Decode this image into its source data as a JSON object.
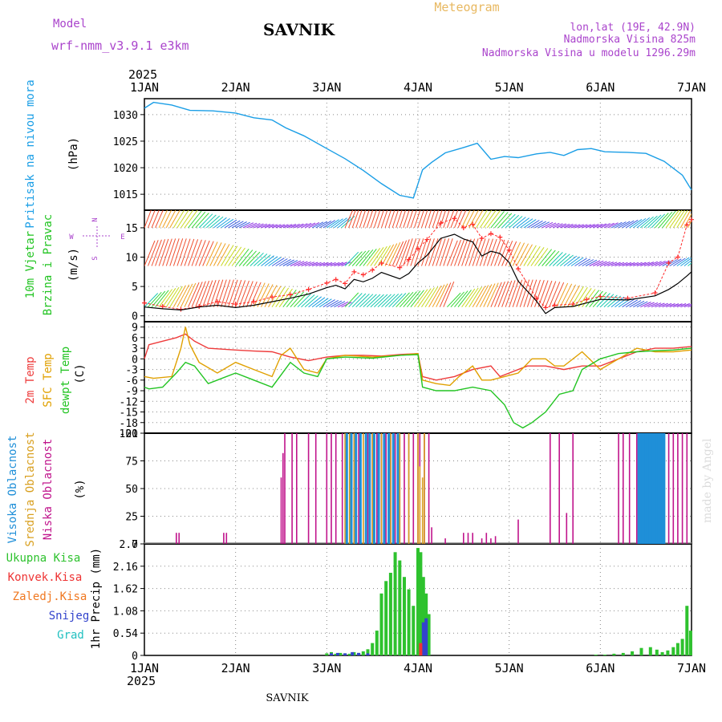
{
  "header": {
    "model_label": "Model",
    "model_name": "wrf-nmm_v3.9.1 e3km",
    "station": "SAVNIK",
    "product": "Meteogram",
    "lonlat": "lon,lat (19E, 42.9N)",
    "elevation": "Nadmorska Visina 825m",
    "model_elevation": "Nadmorska Visina u modelu 1296.29m",
    "footer_station": "SAVNIK",
    "signature": "made by Angel",
    "year": "2025"
  },
  "colors": {
    "pressure": "#1a9ee6",
    "wind_speed": "#000000",
    "gust": "#ff2a2a",
    "temp2m": "#ee3b3b",
    "sfc_temp": "#e0a000",
    "dewpt": "#22c422",
    "high_cloud": "#1f8fd8",
    "mid_cloud": "#d9a020",
    "low_cloud": "#c0148c",
    "precip_total": "#2ec22e",
    "precip_conv": "#ee3333",
    "snow": "#3344cc",
    "header_purple": "#aa44cc",
    "product_color": "#e8b860"
  },
  "chart_data": {
    "type": "line",
    "x_ticks": [
      "1JAN",
      "2JAN",
      "3JAN",
      "4JAN",
      "5JAN",
      "6JAN",
      "7JAN"
    ],
    "x_range_days": [
      0,
      6
    ],
    "panels": [
      {
        "id": "pressure",
        "ylabel": [
          "Pritisak na nivou mora",
          "(hPa)"
        ],
        "ylim": [
          1012,
          1033
        ],
        "yticks": [
          "1015",
          "1020",
          "1025",
          "1030"
        ],
        "series": [
          {
            "name": "Pritisak",
            "x": [
              0,
              0.1,
              0.3,
              0.5,
              0.75,
              1.0,
              1.2,
              1.4,
              1.55,
              1.75,
              2.0,
              2.2,
              2.4,
              2.6,
              2.8,
              2.95,
              3.05,
              3.15,
              3.3,
              3.5,
              3.65,
              3.8,
              3.95,
              4.1,
              4.3,
              4.45,
              4.6,
              4.75,
              4.9,
              5.05,
              5.3,
              5.5,
              5.7,
              5.9,
              6.0
            ],
            "y": [
              1031.2,
              1032.3,
              1031.8,
              1030.8,
              1030.7,
              1030.3,
              1029.4,
              1029.0,
              1027.5,
              1026.0,
              1023.6,
              1021.7,
              1019.5,
              1017.0,
              1014.8,
              1014.3,
              1019.6,
              1021.0,
              1022.8,
              1023.8,
              1024.6,
              1021.6,
              1022.1,
              1021.9,
              1022.6,
              1022.9,
              1022.3,
              1023.4,
              1023.6,
              1023.0,
              1022.9,
              1022.7,
              1021.2,
              1018.6,
              1015.8
            ]
          }
        ]
      },
      {
        "id": "wind",
        "ylabel": [
          "10m Vjetar",
          "Brzina i Pravac",
          "(m/s)"
        ],
        "ylim": [
          -1,
          18
        ],
        "yticks": [
          "0",
          "5",
          "10",
          "15"
        ],
        "compass": [
          "N",
          "E",
          "S",
          "W"
        ],
        "series": [
          {
            "name": "Brzina",
            "x": [
              0,
              0.2,
              0.4,
              0.6,
              0.8,
              1.0,
              1.2,
              1.4,
              1.6,
              1.8,
              2.0,
              2.1,
              2.2,
              2.3,
              2.4,
              2.5,
              2.6,
              2.8,
              2.9,
              3.0,
              3.1,
              3.25,
              3.4,
              3.5,
              3.6,
              3.7,
              3.8,
              3.9,
              4.0,
              4.1,
              4.3,
              4.4,
              4.5,
              4.7,
              4.85,
              5.0,
              5.3,
              5.6,
              5.75,
              5.85,
              5.95,
              6.0
            ],
            "y": [
              1.5,
              1.2,
              1.0,
              1.5,
              1.8,
              1.4,
              1.8,
              2.4,
              3.0,
              3.7,
              4.8,
              5.2,
              4.6,
              6.2,
              5.8,
              6.4,
              7.4,
              6.3,
              7.2,
              9.0,
              10.3,
              13.2,
              13.9,
              13.1,
              12.6,
              10.2,
              11.0,
              10.6,
              9.1,
              5.9,
              2.5,
              0.4,
              1.4,
              1.6,
              2.2,
              2.8,
              2.7,
              3.4,
              4.5,
              5.5,
              6.8,
              7.5
            ]
          },
          {
            "name": "Udari",
            "x": [
              0,
              0.2,
              0.4,
              0.6,
              0.8,
              1.0,
              1.2,
              1.4,
              1.6,
              1.8,
              2.0,
              2.1,
              2.2,
              2.3,
              2.4,
              2.5,
              2.6,
              2.8,
              2.9,
              3.0,
              3.1,
              3.25,
              3.4,
              3.5,
              3.6,
              3.7,
              3.8,
              3.9,
              4.0,
              4.1,
              4.3,
              4.4,
              4.5,
              4.7,
              4.85,
              5.0,
              5.3,
              5.6,
              5.75,
              5.85,
              5.95,
              6.0
            ],
            "y": [
              2.2,
              1.6,
              1.1,
              1.6,
              2.4,
              2.0,
              2.4,
              3.2,
              3.6,
              4.5,
              5.6,
              6.2,
              5.5,
              7.5,
              7.0,
              7.8,
              9.0,
              8.2,
              9.6,
              11.4,
              13.0,
              15.8,
              16.6,
              15.0,
              15.6,
              13.2,
              14.0,
              13.4,
              11.2,
              8.0,
              3.0,
              1.4,
              1.8,
              2.0,
              2.8,
              3.3,
              3.0,
              3.9,
              9.0,
              10.0,
              15.5,
              16.4
            ]
          }
        ]
      },
      {
        "id": "temperature",
        "ylabel": [
          "2m Temp",
          "SFC Temp",
          "dewpt Temp",
          "(C)"
        ],
        "ylim": [
          -21,
          10.5
        ],
        "yticks": [
          "-21",
          "-18",
          "-15",
          "-12",
          "-9",
          "-6",
          "-3",
          "0",
          "3",
          "6",
          "9"
        ],
        "series": [
          {
            "name": "2m Temp",
            "x": [
              0,
              0.05,
              0.2,
              0.35,
              0.45,
              0.55,
              0.7,
              1.0,
              1.2,
              1.4,
              1.6,
              1.8,
              2.0,
              2.2,
              2.4,
              2.6,
              2.8,
              3.0,
              3.05,
              3.2,
              3.4,
              3.6,
              3.8,
              3.9,
              4.2,
              4.4,
              4.6,
              4.8,
              5.0,
              5.2,
              5.4,
              5.6,
              5.8,
              6.0
            ],
            "y": [
              0,
              4,
              5,
              6,
              7,
              5,
              3,
              2.5,
              2.2,
              2,
              0.5,
              -0.5,
              0.5,
              1,
              1,
              0.8,
              1.2,
              1.5,
              -5,
              -6,
              -5,
              -3,
              -2,
              -5,
              -2,
              -2,
              -3,
              -2,
              -2,
              0,
              2,
              3,
              3,
              3.5
            ]
          },
          {
            "name": "SFC Temp",
            "x": [
              0,
              0.1,
              0.3,
              0.4,
              0.45,
              0.5,
              0.6,
              0.8,
              1.0,
              1.2,
              1.4,
              1.5,
              1.6,
              1.75,
              1.9,
              2.0,
              2.2,
              2.5,
              2.8,
              3.0,
              3.05,
              3.2,
              3.35,
              3.45,
              3.6,
              3.7,
              3.8,
              3.95,
              4.1,
              4.25,
              4.4,
              4.5,
              4.6,
              4.8,
              5.0,
              5.2,
              5.4,
              5.6,
              5.8,
              6.0
            ],
            "y": [
              -5,
              -5.5,
              -5,
              3,
              9,
              4,
              -1,
              -4,
              -1,
              -3,
              -5,
              1,
              3,
              -3,
              -4,
              0,
              1,
              0.5,
              1,
              1.5,
              -6,
              -7,
              -7.5,
              -5,
              -2,
              -6,
              -6,
              -5,
              -4,
              0,
              0,
              -2,
              -2,
              2,
              -3,
              0,
              3,
              2,
              2,
              2.5
            ]
          },
          {
            "name": "dewpt Temp",
            "x": [
              0,
              0.05,
              0.2,
              0.35,
              0.45,
              0.55,
              0.7,
              0.8,
              1.0,
              1.2,
              1.4,
              1.6,
              1.75,
              1.9,
              2.0,
              2.2,
              2.5,
              2.8,
              3.0,
              3.05,
              3.2,
              3.4,
              3.6,
              3.8,
              3.95,
              4.05,
              4.15,
              4.25,
              4.4,
              4.55,
              4.7,
              4.8,
              5.0,
              5.2,
              5.4,
              5.6,
              5.8,
              6.0
            ],
            "y": [
              -8,
              -8.5,
              -8,
              -4,
              -1,
              -2,
              -7,
              -6,
              -4,
              -6,
              -8,
              -1,
              -4,
              -5,
              0,
              0.5,
              0.2,
              1,
              1.2,
              -8,
              -9,
              -9,
              -8,
              -9,
              -13,
              -18,
              -19.5,
              -18,
              -15,
              -10,
              -9,
              -3,
              0,
              1.5,
              2,
              2.3,
              2.5,
              3
            ]
          }
        ]
      },
      {
        "id": "cloud",
        "ylabel": [
          "Visoka Oblacnost",
          "Srednja Oblacnost",
          "Niska Oblacnost",
          "(%)"
        ],
        "ylim": [
          0,
          100
        ],
        "yticks": [
          "0",
          "25",
          "50",
          "75",
          "100"
        ],
        "series": [
          {
            "name": "Niska",
            "x": [
              0.35,
              0.38,
              0.87,
              0.9,
              1.5,
              1.52,
              1.54,
              1.62,
              1.67,
              1.8,
              1.88,
              2.0,
              2.05,
              2.1,
              2.17,
              2.22,
              2.3,
              2.35,
              2.4,
              2.45,
              2.5,
              2.55,
              2.6,
              2.65,
              2.7,
              2.75,
              2.8,
              2.85,
              2.9,
              2.95,
              3.0,
              3.02,
              3.07,
              3.12,
              3.15,
              3.3,
              3.5,
              3.55,
              3.6,
              3.7,
              3.75,
              3.8,
              3.85,
              4.1,
              4.45,
              4.55,
              4.63,
              4.7,
              5.2,
              5.25,
              5.32,
              5.4,
              5.45,
              5.5,
              5.55,
              5.6,
              5.65,
              5.7,
              5.75,
              5.8,
              5.85,
              5.9,
              5.95
            ],
            "values": [
              10,
              10,
              10,
              10,
              60,
              82,
              100,
              100,
              100,
              100,
              100,
              100,
              100,
              100,
              100,
              100,
              100,
              100,
              100,
              100,
              100,
              100,
              100,
              100,
              100,
              100,
              100,
              100,
              100,
              100,
              100,
              100,
              100,
              100,
              15,
              5,
              10,
              10,
              10,
              5,
              10,
              5,
              7,
              22,
              100,
              100,
              28,
              100,
              100,
              100,
              100,
              100,
              100,
              100,
              100,
              100,
              100,
              100,
              100,
              100,
              100,
              100,
              100
            ]
          },
          {
            "name": "Srednja",
            "x": [
              2.2,
              2.25,
              2.3,
              2.4,
              2.5,
              2.6,
              2.7,
              2.8,
              2.9,
              3.0,
              3.02,
              3.05,
              3.07
            ],
            "values": [
              100,
              100,
              100,
              100,
              100,
              100,
              100,
              100,
              100,
              100,
              70,
              60,
              100
            ]
          },
          {
            "name": "Visoka",
            "x": [
              2.22,
              2.27,
              2.32,
              2.37,
              2.43,
              2.47,
              2.52,
              2.57,
              2.63,
              2.68,
              2.73,
              2.78,
              5.42,
              5.44,
              5.46,
              5.48,
              5.5,
              5.52,
              5.54,
              5.56,
              5.58,
              5.6,
              5.62,
              5.64,
              5.66,
              5.68,
              5.7
            ],
            "values": [
              100,
              100,
              100,
              100,
              100,
              100,
              100,
              100,
              100,
              100,
              100,
              100,
              100,
              100,
              100,
              100,
              100,
              100,
              100,
              100,
              100,
              100,
              100,
              100,
              100,
              100,
              100
            ]
          }
        ]
      },
      {
        "id": "precip",
        "ylabel": [
          "1hr Precip (mm)"
        ],
        "legend": [
          "Ukupna Kisa",
          "Konvek.Kisa",
          "Zaledj.Kisa",
          "Snijeg",
          "Grad"
        ],
        "ylim": [
          0,
          2.7
        ],
        "yticks": [
          "0",
          "0.54",
          "1.08",
          "1.62",
          "2.16",
          "2.7"
        ],
        "series": [
          {
            "name": "Ukupna Kisa",
            "x": [
              2.0,
              2.05,
              2.1,
              2.15,
              2.2,
              2.25,
              2.3,
              2.35,
              2.4,
              2.45,
              2.5,
              2.55,
              2.6,
              2.65,
              2.7,
              2.75,
              2.8,
              2.85,
              2.9,
              2.95,
              3.0,
              3.03,
              3.06,
              3.09,
              3.12,
              4.95,
              5.05,
              5.15,
              5.25,
              5.35,
              5.45,
              5.55,
              5.62,
              5.68,
              5.74,
              5.8,
              5.85,
              5.9,
              5.95,
              5.99
            ],
            "values": [
              0.05,
              0.08,
              0.04,
              0.06,
              0.05,
              0.04,
              0.08,
              0.06,
              0.1,
              0.15,
              0.3,
              0.6,
              1.5,
              1.8,
              2.0,
              2.5,
              2.3,
              1.9,
              1.6,
              1.2,
              2.6,
              2.5,
              1.9,
              1.5,
              1.0,
              0.02,
              0.02,
              0.04,
              0.06,
              0.1,
              0.18,
              0.2,
              0.14,
              0.08,
              0.12,
              0.2,
              0.3,
              0.4,
              1.2,
              0.6
            ]
          },
          {
            "name": "Snijeg",
            "x": [
              2.05,
              2.12,
              2.2,
              2.28,
              2.35,
              2.45,
              3.06,
              3.09
            ],
            "values": [
              0.05,
              0.06,
              0.05,
              0.08,
              0.06,
              0.05,
              0.8,
              0.9
            ]
          },
          {
            "name": "Konvek.Kisa",
            "x": [
              3.03
            ],
            "values": [
              0.3
            ]
          }
        ]
      }
    ]
  }
}
